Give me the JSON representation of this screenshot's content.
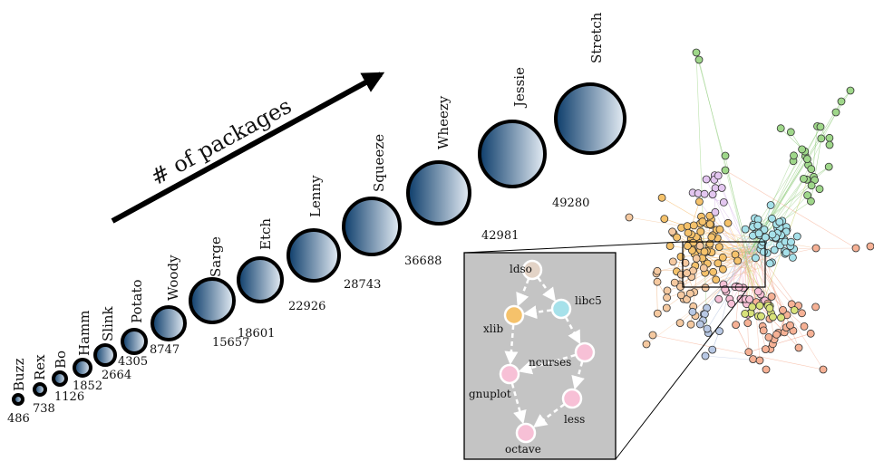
{
  "arrow_label": "# of packages",
  "colors": {
    "circle_dark": "#0d3d6b",
    "circle_light": "#e4ecf4",
    "inset_bg": "#c4c4c4",
    "node_orange": "#f5c26b",
    "node_cyan": "#a6e1ea",
    "node_pink": "#f7c0d6",
    "node_tan": "#e3d3c6"
  },
  "releases": [
    {
      "name": "Buzz",
      "packages": "486"
    },
    {
      "name": "Rex",
      "packages": "738"
    },
    {
      "name": "Bo",
      "packages": "1126"
    },
    {
      "name": "Hamm",
      "packages": "1852"
    },
    {
      "name": "Slink",
      "packages": "2664"
    },
    {
      "name": "Potato",
      "packages": "4305"
    },
    {
      "name": "Woody",
      "packages": "8747"
    },
    {
      "name": "Sarge",
      "packages": "15657"
    },
    {
      "name": "Etch",
      "packages": "18601"
    },
    {
      "name": "Lenny",
      "packages": "22926"
    },
    {
      "name": "Squeeze",
      "packages": "28743"
    },
    {
      "name": "Wheezy",
      "packages": "36688"
    },
    {
      "name": "Jessie",
      "packages": "42981"
    },
    {
      "name": "Stretch",
      "packages": "49280"
    }
  ],
  "inset": {
    "nodes": [
      {
        "id": "ldso",
        "label": "ldso",
        "color": "#e3d3c6"
      },
      {
        "id": "libc5",
        "label": "libc5",
        "color": "#a6e1ea"
      },
      {
        "id": "xlib",
        "label": "xlib",
        "color": "#f5c26b"
      },
      {
        "id": "ncurses",
        "label": "ncurses",
        "color": "#f7c0d6"
      },
      {
        "id": "gnuplot",
        "label": "gnuplot",
        "color": "#f7c0d6"
      },
      {
        "id": "less",
        "label": "less",
        "color": "#f7c0d6"
      },
      {
        "id": "octave",
        "label": "octave",
        "color": "#f7c0d6"
      }
    ],
    "edges": [
      [
        "ldso",
        "xlib"
      ],
      [
        "ldso",
        "libc5"
      ],
      [
        "libc5",
        "xlib"
      ],
      [
        "libc5",
        "ncurses"
      ],
      [
        "xlib",
        "gnuplot"
      ],
      [
        "ncurses",
        "gnuplot"
      ],
      [
        "ncurses",
        "less"
      ],
      [
        "gnuplot",
        "octave"
      ],
      [
        "less",
        "octave"
      ]
    ]
  }
}
